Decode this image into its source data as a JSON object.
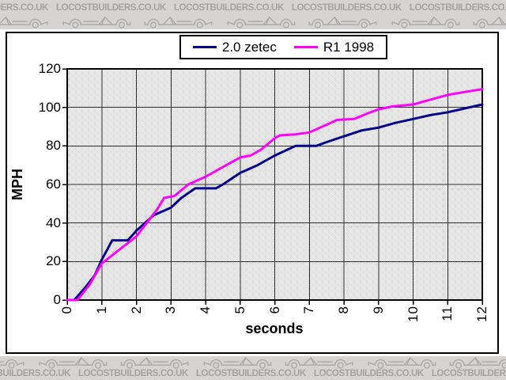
{
  "watermark": {
    "text": "LOCOSTBUILDERS.CO.UK"
  },
  "legend": {
    "items": [
      {
        "label": "2.0 zetec",
        "color": "#00008b"
      },
      {
        "label": "R1 1998",
        "color": "#ff00ff"
      }
    ]
  },
  "colors": {
    "banner_bg": "#d5d4d2",
    "banner_ink": "#a3a3a3",
    "plot_dither": "#d4d4d4",
    "gridline": "#2e2e2e",
    "frame": "#000000"
  },
  "chart_data": {
    "type": "line",
    "title": "",
    "xlabel": "seconds",
    "ylabel": "MPH",
    "xlim": [
      0,
      12
    ],
    "ylim": [
      0,
      120
    ],
    "x_ticks": [
      0,
      1,
      2,
      3,
      4,
      5,
      6,
      7,
      8,
      9,
      10,
      11,
      12
    ],
    "y_ticks": [
      0,
      20,
      40,
      60,
      80,
      100,
      120
    ],
    "grid": true,
    "legend_position": "top-center",
    "series": [
      {
        "name": "2.0 zetec",
        "color": "#00008b",
        "points": [
          [
            0,
            0
          ],
          [
            0.2,
            0
          ],
          [
            0.5,
            6
          ],
          [
            0.8,
            13
          ],
          [
            1.0,
            21
          ],
          [
            1.3,
            31
          ],
          [
            1.75,
            31
          ],
          [
            2.0,
            36
          ],
          [
            2.5,
            44
          ],
          [
            3.0,
            48
          ],
          [
            3.3,
            53
          ],
          [
            3.7,
            58
          ],
          [
            4.3,
            58
          ],
          [
            4.5,
            60
          ],
          [
            5.0,
            66
          ],
          [
            5.5,
            70
          ],
          [
            6.0,
            75
          ],
          [
            6.6,
            80
          ],
          [
            7.2,
            80
          ],
          [
            7.5,
            82
          ],
          [
            8.0,
            85
          ],
          [
            8.5,
            88
          ],
          [
            9.0,
            89.5
          ],
          [
            9.5,
            92
          ],
          [
            10.0,
            94
          ],
          [
            10.5,
            96
          ],
          [
            11.0,
            97.5
          ],
          [
            11.5,
            99.5
          ],
          [
            12.0,
            101.5
          ]
        ]
      },
      {
        "name": "R1 1998",
        "color": "#ff00ff",
        "points": [
          [
            0,
            0
          ],
          [
            0.3,
            0
          ],
          [
            0.65,
            8
          ],
          [
            1.0,
            19
          ],
          [
            1.5,
            26
          ],
          [
            2.0,
            33
          ],
          [
            2.3,
            40
          ],
          [
            2.6,
            47
          ],
          [
            2.8,
            53
          ],
          [
            3.1,
            54
          ],
          [
            3.5,
            60
          ],
          [
            4.0,
            64
          ],
          [
            4.5,
            69
          ],
          [
            5.0,
            74
          ],
          [
            5.3,
            75
          ],
          [
            5.6,
            78
          ],
          [
            6.0,
            84
          ],
          [
            6.15,
            85.5
          ],
          [
            6.6,
            86
          ],
          [
            7.0,
            87
          ],
          [
            7.5,
            91
          ],
          [
            7.8,
            93.5
          ],
          [
            8.3,
            94
          ],
          [
            8.7,
            97
          ],
          [
            9.0,
            99
          ],
          [
            9.4,
            100.5
          ],
          [
            10.0,
            101.5
          ],
          [
            10.5,
            104
          ],
          [
            11.0,
            106.5
          ],
          [
            11.5,
            108
          ],
          [
            12.0,
            109.5
          ]
        ]
      }
    ]
  }
}
